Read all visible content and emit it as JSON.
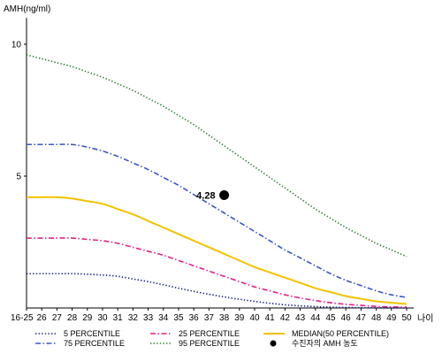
{
  "chart_data": {
    "type": "line",
    "ylabel": "AMH(ng/ml)",
    "xlabel": "나이",
    "ylim": [
      0,
      11
    ],
    "y_ticks": [
      5,
      10
    ],
    "categories": [
      "16-25",
      "26",
      "27",
      "28",
      "29",
      "30",
      "31",
      "32",
      "33",
      "34",
      "35",
      "36",
      "37",
      "38",
      "39",
      "40",
      "41",
      "42",
      "43",
      "44",
      "45",
      "46",
      "47",
      "48",
      "49",
      "50"
    ],
    "x_tick_labels": [
      "16-25",
      "26",
      "27",
      "28",
      "29",
      "30",
      "31",
      "32",
      "33",
      "34",
      "35",
      "36",
      "37",
      "38",
      "39",
      "40",
      "41",
      "42",
      "43",
      "44",
      "45",
      "46",
      "47",
      "48",
      "49",
      "50"
    ],
    "series": [
      {
        "name": "95 PERCENTILE",
        "color": "#2e7d32",
        "dash": "dotted",
        "values": [
          9.6,
          9.45,
          9.3,
          9.15,
          8.95,
          8.75,
          8.5,
          8.25,
          7.95,
          7.65,
          7.3,
          6.95,
          6.55,
          6.15,
          5.75,
          5.35,
          4.95,
          4.55,
          4.15,
          3.75,
          3.4,
          3.05,
          2.75,
          2.45,
          2.2,
          1.95
        ]
      },
      {
        "name": "75 PERCENTILE",
        "color": "#3a56c4",
        "dash": "dashdot",
        "values": [
          6.2,
          6.2,
          6.2,
          6.2,
          6.1,
          5.95,
          5.75,
          5.5,
          5.25,
          4.95,
          4.65,
          4.3,
          3.95,
          3.6,
          3.25,
          2.9,
          2.55,
          2.2,
          1.9,
          1.6,
          1.3,
          1.05,
          0.85,
          0.65,
          0.5,
          0.4
        ]
      },
      {
        "name": "MEDIAN(50 PERCENTILE)",
        "color": "#f2c200",
        "dash": "solid",
        "values": [
          4.2,
          4.2,
          4.2,
          4.15,
          4.05,
          3.95,
          3.75,
          3.55,
          3.3,
          3.05,
          2.8,
          2.55,
          2.3,
          2.05,
          1.8,
          1.55,
          1.35,
          1.15,
          0.95,
          0.75,
          0.6,
          0.45,
          0.35,
          0.25,
          0.2,
          0.15
        ]
      },
      {
        "name": "25 PERCENTILE",
        "color": "#e0208c",
        "dash": "dashdot",
        "values": [
          2.65,
          2.65,
          2.65,
          2.65,
          2.6,
          2.55,
          2.45,
          2.3,
          2.15,
          2.0,
          1.8,
          1.6,
          1.4,
          1.2,
          1.0,
          0.8,
          0.65,
          0.5,
          0.38,
          0.28,
          0.2,
          0.14,
          0.1,
          0.06,
          0.04,
          0.03
        ]
      },
      {
        "name": "5 PERCENTILE",
        "color": "#1a237e",
        "dash": "dotted",
        "values": [
          1.3,
          1.3,
          1.3,
          1.3,
          1.28,
          1.25,
          1.2,
          1.1,
          1.0,
          0.88,
          0.75,
          0.63,
          0.52,
          0.42,
          0.33,
          0.25,
          0.18,
          0.12,
          0.08,
          0.05,
          0.03,
          0.02,
          0.01,
          0.005,
          0.0,
          0.0
        ]
      }
    ],
    "points": [
      {
        "name": "수진자의 AMH 농도",
        "x": "38",
        "y": 4.28,
        "label": "4.28",
        "color": "#000000"
      }
    ],
    "legend": {
      "position": "bottom",
      "items": [
        {
          "label": "5 PERCENTILE",
          "color": "#1a237e",
          "style": "dotted"
        },
        {
          "label": "25 PERCENTILE",
          "color": "#e0208c",
          "style": "dashdot"
        },
        {
          "label": "MEDIAN(50 PERCENTILE)",
          "color": "#f2c200",
          "style": "solid"
        },
        {
          "label": "75 PERCENTILE",
          "color": "#3a56c4",
          "style": "dashdot"
        },
        {
          "label": "95 PERCENTILE",
          "color": "#2e7d32",
          "style": "dotted"
        },
        {
          "label": "수진자의 AMH 농도",
          "color": "#000000",
          "style": "dot"
        }
      ]
    }
  }
}
